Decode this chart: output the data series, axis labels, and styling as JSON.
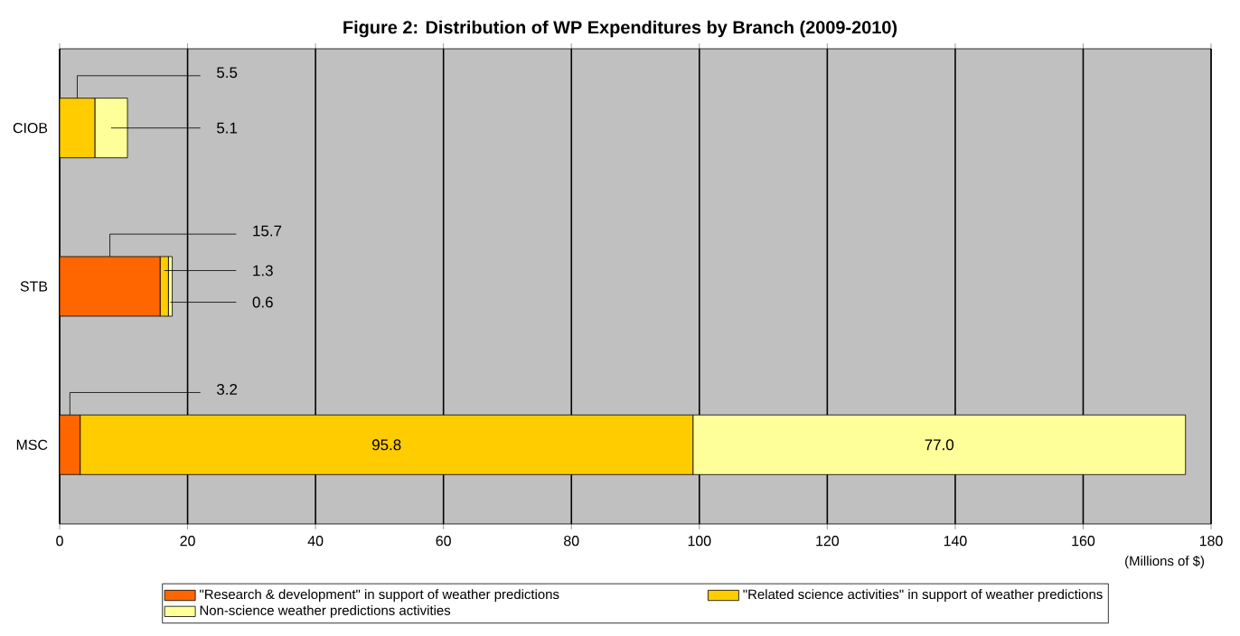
{
  "chart_data": {
    "type": "bar",
    "orientation": "horizontal",
    "stacked": true,
    "title": "Figure 2: Distribution of WP Expenditures by Branch (2009-2010)",
    "xlabel": "(Millions of $)",
    "categories": [
      "CIOB",
      "STB",
      "MSC"
    ],
    "series": [
      {
        "name": "\"Research & development\" in support of weather predictions",
        "color": "#ff6600",
        "values": [
          0,
          15.7,
          3.2
        ],
        "value_labels": [
          null,
          "15.7",
          "3.2"
        ]
      },
      {
        "name": "\"Related science activities\" in support of weather predictions",
        "color": "#ffcc00",
        "values": [
          5.5,
          1.3,
          95.8
        ],
        "value_labels": [
          "5.5",
          "1.3",
          "95.8"
        ]
      },
      {
        "name": "Non-science weather predictions activities",
        "color": "#ffff99",
        "values": [
          5.1,
          0.6,
          77.0
        ],
        "value_labels": [
          "5.1",
          "0.6",
          "77.0"
        ]
      }
    ],
    "xlim": [
      0,
      180
    ],
    "xticks": [
      0,
      20,
      40,
      60,
      80,
      100,
      120,
      140,
      160,
      180
    ],
    "grid": "x",
    "legend": "bottom"
  }
}
